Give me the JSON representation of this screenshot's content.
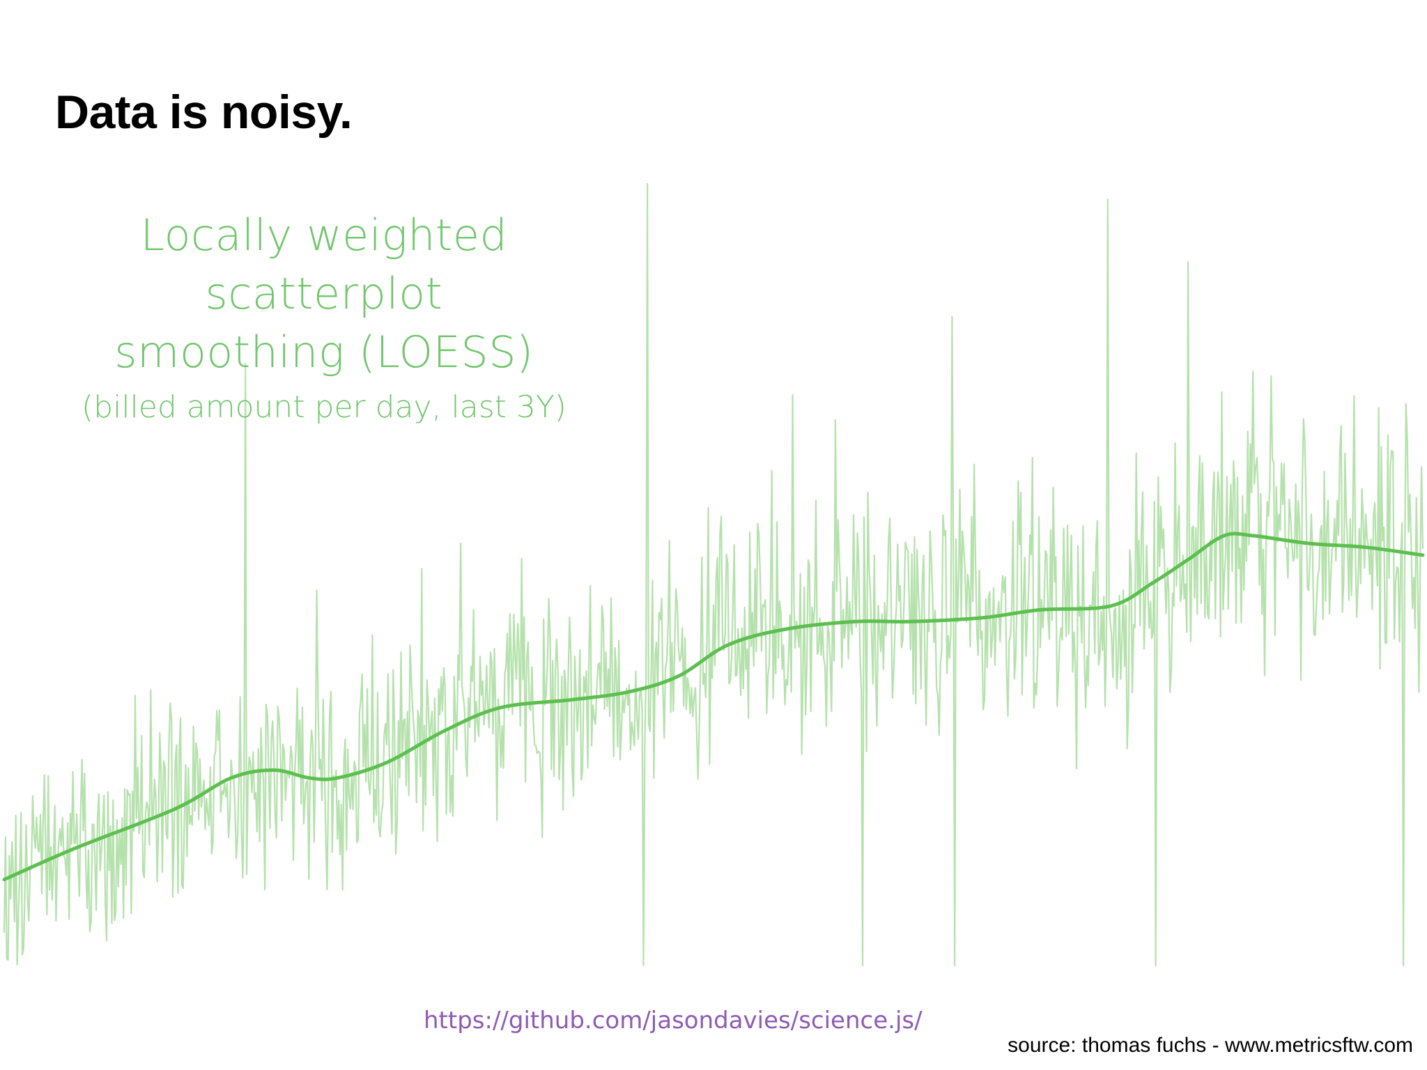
{
  "slide": {
    "title": "Data is noisy.",
    "link": "https://github.com/jasondavies/science.js/",
    "source": "source: thomas fuchs - www.metricsftw.com"
  },
  "colors": {
    "raw_series": "#a8dc9e",
    "loess_line": "#5cbf4f",
    "heading": "#72c66d",
    "link": "#8e5bb5"
  },
  "chart_data": {
    "type": "line",
    "title": "Locally weighted scatterplot smoothing (LOESS)",
    "title_line1": "Locally weighted scatterplot",
    "title_line2": "smoothing (LOESS)",
    "subtitle": "(billed amount per day, last 3Y)",
    "xlabel": "",
    "ylabel": "",
    "axes_shown": false,
    "grid": false,
    "x_range": [
      0,
      100
    ],
    "y_range": [
      0,
      100
    ],
    "series": [
      {
        "role": "raw",
        "name": "",
        "style": "thin light green line, many daily points",
        "noise_scale": 11,
        "spikes": [
          {
            "x": 17.0,
            "y": 77
          },
          {
            "x": 22.0,
            "y": 48
          },
          {
            "x": 32.2,
            "y": 54
          },
          {
            "x": 45.3,
            "y": 100
          },
          {
            "x": 55.6,
            "y": 73
          },
          {
            "x": 66.8,
            "y": 83
          },
          {
            "x": 72.5,
            "y": 65
          },
          {
            "x": 77.8,
            "y": 98
          },
          {
            "x": 83.5,
            "y": 90
          },
          {
            "x": 88.0,
            "y": 76
          },
          {
            "x": 45.1,
            "y": 0
          },
          {
            "x": 60.5,
            "y": 0
          },
          {
            "x": 67.0,
            "y": 0
          },
          {
            "x": 81.2,
            "y": 0
          },
          {
            "x": 98.6,
            "y": 0
          }
        ]
      },
      {
        "role": "smoothed",
        "name": "",
        "style": "thick green line",
        "points": [
          {
            "x": 0,
            "y": 11
          },
          {
            "x": 5,
            "y": 15
          },
          {
            "x": 12,
            "y": 20
          },
          {
            "x": 16,
            "y": 24
          },
          {
            "x": 19,
            "y": 25
          },
          {
            "x": 21.5,
            "y": 24
          },
          {
            "x": 23.5,
            "y": 24
          },
          {
            "x": 27,
            "y": 26
          },
          {
            "x": 31,
            "y": 30
          },
          {
            "x": 35,
            "y": 33
          },
          {
            "x": 40,
            "y": 34
          },
          {
            "x": 44,
            "y": 35
          },
          {
            "x": 47.5,
            "y": 37
          },
          {
            "x": 51,
            "y": 41
          },
          {
            "x": 55,
            "y": 43
          },
          {
            "x": 60,
            "y": 44
          },
          {
            "x": 64,
            "y": 44
          },
          {
            "x": 69,
            "y": 44.5
          },
          {
            "x": 73,
            "y": 45.5
          },
          {
            "x": 78,
            "y": 46
          },
          {
            "x": 81,
            "y": 49
          },
          {
            "x": 83.5,
            "y": 52
          },
          {
            "x": 86,
            "y": 55
          },
          {
            "x": 88,
            "y": 55
          },
          {
            "x": 92,
            "y": 54
          },
          {
            "x": 96,
            "y": 53.5
          },
          {
            "x": 100,
            "y": 52.5
          }
        ]
      }
    ]
  }
}
